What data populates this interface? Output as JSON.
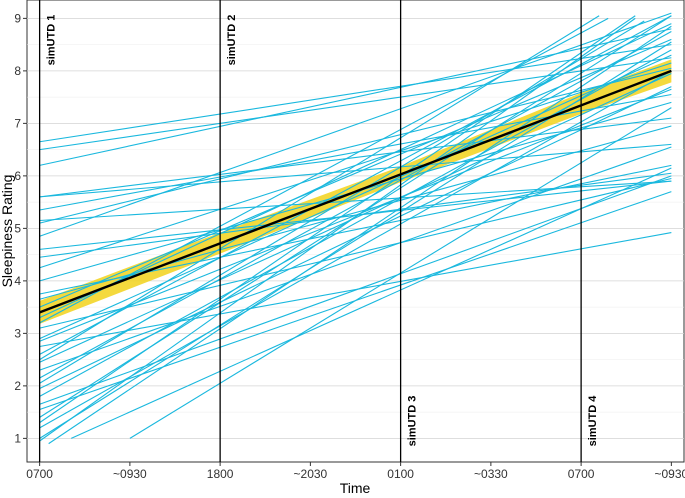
{
  "chart_data": {
    "type": "line",
    "title": "",
    "xlabel": "Time",
    "ylabel": "Sleepiness Rating",
    "x_ticks": [
      {
        "value": 0,
        "label": "0700"
      },
      {
        "value": 1,
        "label": "~0930"
      },
      {
        "value": 2,
        "label": "1800"
      },
      {
        "value": 3,
        "label": "~2030"
      },
      {
        "value": 4,
        "label": "0100"
      },
      {
        "value": 5,
        "label": "~0330"
      },
      {
        "value": 6,
        "label": "0700"
      },
      {
        "value": 7,
        "label": "~0930"
      }
    ],
    "xlim": [
      -0.14,
      7.14
    ],
    "ylim": [
      0.55,
      9.35
    ],
    "y_ticks": [
      1,
      2,
      3,
      4,
      5,
      6,
      7,
      8,
      9
    ],
    "grid": true,
    "vertical_markers": [
      {
        "x": 0,
        "label": "simUTD 1",
        "label_pos": "top"
      },
      {
        "x": 2,
        "label": "simUTD 2",
        "label_pos": "top"
      },
      {
        "x": 4,
        "label": "simUTD 3",
        "label_pos": "bottom"
      },
      {
        "x": 6,
        "label": "simUTD 4",
        "label_pos": "bottom"
      }
    ],
    "fitted_line": {
      "x": [
        0,
        7
      ],
      "y": [
        3.4,
        8.0
      ],
      "color": "#000000"
    },
    "confidence_band": {
      "x": [
        0,
        2,
        4,
        6,
        7
      ],
      "lower": [
        3.18,
        4.52,
        5.88,
        7.18,
        7.78
      ],
      "upper": [
        3.62,
        4.92,
        6.18,
        7.58,
        8.22
      ],
      "color": "#f2d21b"
    },
    "individual_color": "#1ab8de",
    "individual_lines": [
      {
        "x": [
          0,
          7
        ],
        "y": [
          6.65,
          8.5
        ]
      },
      {
        "x": [
          0,
          7
        ],
        "y": [
          6.5,
          8.25
        ]
      },
      {
        "x": [
          0,
          7
        ],
        "y": [
          6.2,
          8.8
        ]
      },
      {
        "x": [
          0,
          7
        ],
        "y": [
          5.6,
          6.6
        ]
      },
      {
        "x": [
          0,
          7
        ],
        "y": [
          5.6,
          7.1
        ]
      },
      {
        "x": [
          0,
          7
        ],
        "y": [
          5.35,
          7.55
        ]
      },
      {
        "x": [
          0,
          7
        ],
        "y": [
          5.1,
          8.05
        ]
      },
      {
        "x": [
          0,
          7
        ],
        "y": [
          4.85,
          9.1
        ]
      },
      {
        "x": [
          0,
          7
        ],
        "y": [
          4.6,
          5.9
        ]
      },
      {
        "x": [
          0,
          7
        ],
        "y": [
          4.45,
          6.05
        ]
      },
      {
        "x": [
          0,
          7
        ],
        "y": [
          4.25,
          8.15
        ]
      },
      {
        "x": [
          0,
          7
        ],
        "y": [
          4.0,
          7.4
        ]
      },
      {
        "x": [
          0,
          7
        ],
        "y": [
          3.75,
          6.2
        ]
      },
      {
        "x": [
          0,
          7
        ],
        "y": [
          3.5,
          8.6
        ]
      },
      {
        "x": [
          0,
          7
        ],
        "y": [
          3.3,
          8.9
        ]
      },
      {
        "x": [
          0,
          7
        ],
        "y": [
          3.1,
          5.95
        ]
      },
      {
        "x": [
          0,
          7
        ],
        "y": [
          2.9,
          8.3
        ]
      },
      {
        "x": [
          0,
          7
        ],
        "y": [
          2.75,
          4.92
        ]
      },
      {
        "x": [
          0,
          7
        ],
        "y": [
          2.6,
          9.05
        ]
      },
      {
        "x": [
          0,
          7
        ],
        "y": [
          2.45,
          7.95
        ]
      },
      {
        "x": [
          0,
          7
        ],
        "y": [
          2.3,
          6.55
        ]
      },
      {
        "x": [
          0,
          7
        ],
        "y": [
          2.15,
          8.75
        ]
      },
      {
        "x": [
          0,
          7
        ],
        "y": [
          1.95,
          7.7
        ]
      },
      {
        "x": [
          0,
          7
        ],
        "y": [
          1.8,
          8.4
        ]
      },
      {
        "x": [
          0,
          7
        ],
        "y": [
          1.65,
          6.0
        ]
      },
      {
        "x": [
          0,
          7
        ],
        "y": [
          1.4,
          9.05
        ]
      },
      {
        "x": [
          0,
          7
        ],
        "y": [
          1.2,
          8.0
        ]
      },
      {
        "x": [
          0,
          7
        ],
        "y": [
          1.0,
          8.55
        ]
      },
      {
        "x": [
          0.1,
          7
        ],
        "y": [
          0.9,
          8.85
        ]
      },
      {
        "x": [
          0.35,
          7
        ],
        "y": [
          1.0,
          6.15
        ]
      },
      {
        "x": [
          1.0,
          7
        ],
        "y": [
          1.0,
          7.3
        ]
      },
      {
        "x": [
          0,
          6.2
        ],
        "y": [
          2.5,
          9.05
        ]
      },
      {
        "x": [
          0,
          6.6
        ],
        "y": [
          1.3,
          9.05
        ]
      },
      {
        "x": [
          0,
          6.3
        ],
        "y": [
          3.2,
          9.0
        ]
      },
      {
        "x": [
          0,
          6.7
        ],
        "y": [
          2.05,
          8.95
        ]
      },
      {
        "x": [
          0,
          6.6
        ],
        "y": [
          0.95,
          9.0
        ]
      },
      {
        "x": [
          0,
          7
        ],
        "y": [
          5.15,
          5.9
        ]
      },
      {
        "x": [
          0,
          7
        ],
        "y": [
          3.65,
          6.95
        ]
      },
      {
        "x": [
          0,
          7
        ],
        "y": [
          2.85,
          7.65
        ]
      },
      {
        "x": [
          0,
          7
        ],
        "y": [
          1.55,
          5.7
        ]
      }
    ]
  }
}
